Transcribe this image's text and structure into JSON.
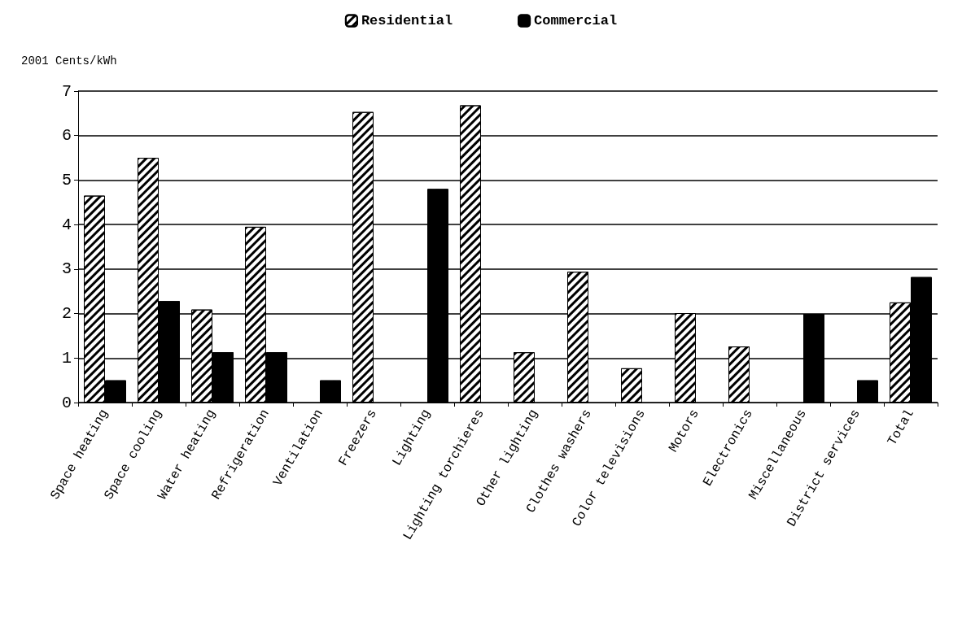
{
  "chart_data": {
    "type": "bar",
    "ylabel": "2001 Cents/kWh",
    "categories": [
      "Space heating",
      "Space cooling",
      "Water heating",
      "Refrigeration",
      "Ventilation",
      "Freezers",
      "Lighting",
      "Lighting torchieres",
      "Other lighting",
      "Clothes washers",
      "Color televisions",
      "Motors",
      "Electronics",
      "Miscellaneous",
      "District services",
      "Total"
    ],
    "series": [
      {
        "name": "Residential",
        "color": "#ffffff",
        "values": [
          4.65,
          5.5,
          2.09,
          3.95,
          null,
          6.53,
          null,
          6.68,
          1.13,
          2.94,
          0.77,
          2.01,
          1.26,
          null,
          null,
          2.25
        ]
      },
      {
        "name": "Commercial",
        "color": "#000000",
        "values": [
          0.5,
          2.28,
          1.13,
          1.13,
          0.5,
          null,
          4.8,
          null,
          null,
          null,
          null,
          null,
          null,
          1.99,
          0.5,
          2.82
        ]
      }
    ],
    "ylim": [
      0,
      7
    ],
    "yticks": [
      0,
      1,
      2,
      3,
      4,
      5,
      6,
      7
    ],
    "grid": "y",
    "legend": "top"
  }
}
